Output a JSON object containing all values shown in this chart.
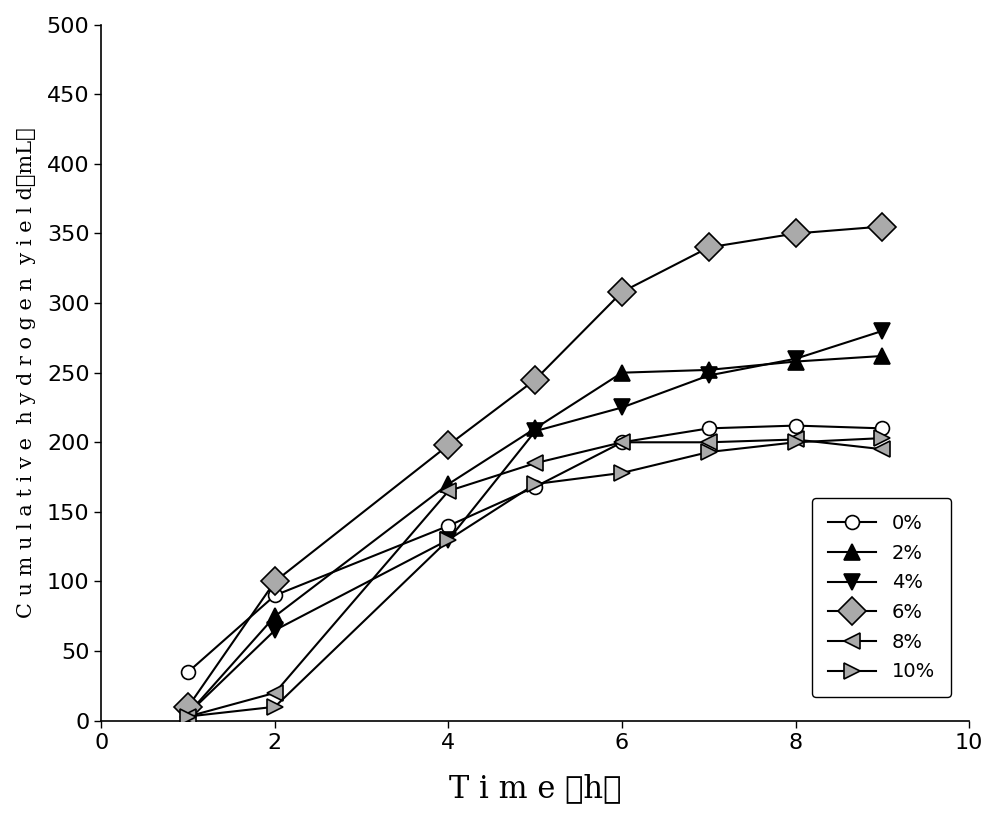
{
  "series": [
    {
      "label": "0%",
      "x": [
        1,
        2,
        4,
        5,
        6,
        7,
        8,
        9
      ],
      "y": [
        35,
        90,
        140,
        168,
        200,
        210,
        212,
        210
      ],
      "marker": "o",
      "mfc": "white",
      "mec": "black",
      "ms": 10
    },
    {
      "label": "2%",
      "x": [
        1,
        2,
        4,
        5,
        6,
        7,
        8,
        9
      ],
      "y": [
        5,
        75,
        170,
        210,
        250,
        252,
        258,
        262
      ],
      "marker": "^",
      "mfc": "black",
      "mec": "black",
      "ms": 12
    },
    {
      "label": "4%",
      "x": [
        1,
        2,
        4,
        5,
        6,
        7,
        8,
        9
      ],
      "y": [
        5,
        65,
        130,
        208,
        225,
        248,
        260,
        280
      ],
      "marker": "v",
      "mfc": "black",
      "mec": "black",
      "ms": 12
    },
    {
      "label": "6%",
      "x": [
        1,
        2,
        4,
        5,
        6,
        7,
        8,
        9
      ],
      "y": [
        10,
        100,
        198,
        245,
        308,
        340,
        350,
        355
      ],
      "marker": "D",
      "mfc": "#aaaaaa",
      "mec": "black",
      "ms": 14
    },
    {
      "label": "8%",
      "x": [
        1,
        2,
        4,
        5,
        6,
        7,
        8,
        9
      ],
      "y": [
        3,
        20,
        165,
        185,
        200,
        200,
        202,
        195
      ],
      "marker": "<",
      "mfc": "#aaaaaa",
      "mec": "black",
      "ms": 12
    },
    {
      "label": "10%",
      "x": [
        1,
        2,
        4,
        5,
        6,
        7,
        8,
        9
      ],
      "y": [
        3,
        10,
        130,
        170,
        178,
        193,
        200,
        203
      ],
      "marker": ">",
      "mfc": "#aaaaaa",
      "mec": "black",
      "ms": 12
    }
  ],
  "xlim": [
    0,
    10
  ],
  "ylim": [
    0,
    500
  ],
  "xticks": [
    0,
    2,
    4,
    6,
    8,
    10
  ],
  "yticks": [
    0,
    50,
    100,
    150,
    200,
    250,
    300,
    350,
    400,
    450,
    500
  ],
  "xlabel": "T i m e （h）",
  "ylabel": "C u m u l a t i v e  h y d r o g e n  y i e l d（mL）",
  "background_color": "#ffffff",
  "linewidth": 1.5,
  "xlabel_fontsize": 22,
  "ylabel_fontsize": 15,
  "tick_fontsize": 16
}
